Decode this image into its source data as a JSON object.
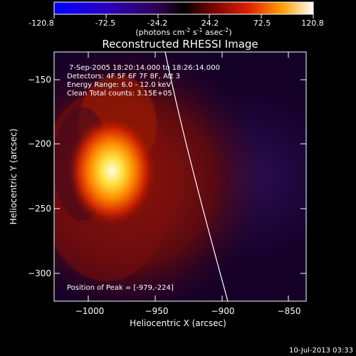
{
  "colorbar": {
    "ticks": [
      "-120.8",
      "-72.5",
      "-24.2",
      "24.2",
      "72.5",
      "120.8"
    ],
    "unit_main": "(photons cm",
    "unit_exp1": "-2",
    "unit_mid": " s",
    "unit_exp2": "-1",
    "unit_end": " asec",
    "unit_exp3": "-2",
    "unit_close": ")"
  },
  "image": {
    "title": "Reconstructed RHESSI Image",
    "annotations": {
      "time_range": "7-Sep-2005 18:20:14.000 to 18:26:14.000",
      "detectors": "Detectors: 4F 5F 6F 7F 8F, Att 3",
      "energy": "Energy Range: 6.0 - 12.0 keV",
      "clean": "Clean    Total counts: 3.15E+05",
      "peak": "Position of Peak = [-979,-224]"
    }
  },
  "axes": {
    "xlabel": "Heliocentric X (arcsec)",
    "ylabel": "Heliocentric Y (arcsec)",
    "x_ticks": [
      "−1000",
      "−950",
      "−900",
      "−850"
    ],
    "y_ticks": [
      "−150",
      "−200",
      "−250",
      "−300"
    ]
  },
  "footer": {
    "date": "10-Jul-2013 03:33"
  }
}
